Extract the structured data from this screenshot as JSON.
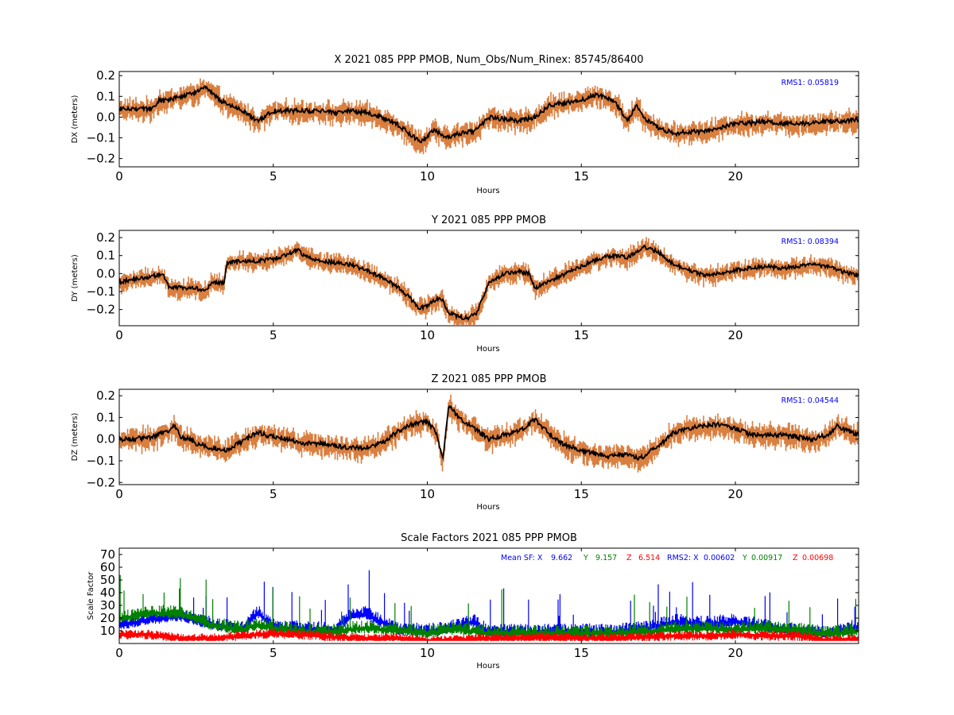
{
  "chart_data": [
    {
      "type": "line",
      "title": "X 2021 085 PPP  PMOB, Num_Obs/Num_Rinex: 85745/86400",
      "xlabel": "Hours",
      "ylabel": "DX (meters)",
      "xlim": [
        0,
        24
      ],
      "ylim": [
        -0.24,
        0.22
      ],
      "xticks": [
        "0",
        "5",
        "10",
        "15",
        "20"
      ],
      "yticks": [
        "0.2",
        "0.1",
        "0.0",
        "−0.1",
        "−0.2"
      ],
      "annotation": "RMS1:  0.05819",
      "colors": {
        "envelope": "#d2691e",
        "trace": "#000000",
        "annotation": "#0000ff"
      },
      "series": [
        {
          "x": [
            0,
            0.5,
            1,
            1.3,
            1.5,
            2,
            2.5,
            2.8,
            3,
            3.3,
            3.5,
            4,
            4.3,
            4.5,
            5,
            5.5,
            6,
            6.5,
            7,
            7.5,
            8,
            8.5,
            9,
            9.5,
            9.8,
            10,
            10.2,
            10.4,
            10.6,
            11,
            11.5,
            12,
            12.5,
            13,
            13.5,
            14,
            14.5,
            15,
            15.3,
            15.5,
            16,
            16.2,
            16.5,
            16.8,
            17,
            17.5,
            18,
            18.5,
            19,
            19.5,
            20,
            20.5,
            21,
            21.5,
            22,
            22.5,
            23,
            23.5,
            24
          ],
          "y": [
            0.04,
            0.04,
            0.04,
            0.08,
            0.08,
            0.1,
            0.12,
            0.14,
            0.12,
            0.08,
            0.06,
            0.03,
            0.0,
            -0.02,
            0.03,
            0.03,
            0.03,
            0.03,
            0.02,
            0.03,
            0.02,
            0.0,
            -0.03,
            -0.09,
            -0.12,
            -0.1,
            -0.06,
            -0.08,
            -0.1,
            -0.08,
            -0.07,
            0.0,
            -0.01,
            -0.02,
            0.0,
            0.06,
            0.07,
            0.08,
            0.1,
            0.11,
            0.08,
            0.05,
            -0.02,
            0.06,
            0.0,
            -0.05,
            -0.08,
            -0.07,
            -0.07,
            -0.05,
            -0.03,
            -0.03,
            -0.02,
            -0.03,
            -0.03,
            -0.03,
            -0.02,
            -0.02,
            -0.01
          ]
        }
      ]
    },
    {
      "type": "line",
      "title": "Y 2021 085 PPP  PMOB",
      "xlabel": "Hours",
      "ylabel": "DY (meters)",
      "xlim": [
        0,
        24
      ],
      "ylim": [
        -0.29,
        0.24
      ],
      "xticks": [
        "0",
        "5",
        "10",
        "15",
        "20"
      ],
      "yticks": [
        "0.2",
        "0.1",
        "0.0",
        "−0.1",
        "−0.2"
      ],
      "annotation": "RMS1:  0.08394",
      "colors": {
        "envelope": "#d2691e",
        "trace": "#000000",
        "annotation": "#0000ff"
      },
      "series": [
        {
          "x": [
            0,
            0.5,
            1,
            1.4,
            1.6,
            2,
            2.5,
            2.8,
            3,
            3.4,
            3.5,
            4,
            4.5,
            5,
            5.5,
            5.8,
            6,
            6.5,
            7,
            7.5,
            8,
            8.5,
            9,
            9.4,
            9.7,
            10,
            10.3,
            10.5,
            10.7,
            11,
            11.3,
            11.6,
            12,
            12.5,
            13,
            13.3,
            13.5,
            14,
            14.5,
            15,
            15.5,
            16,
            16.5,
            16.8,
            17,
            17.5,
            18,
            18.5,
            19,
            19.5,
            20,
            20.5,
            21,
            21.5,
            22,
            22.5,
            23,
            23.5,
            24
          ],
          "y": [
            -0.05,
            -0.03,
            -0.02,
            0.0,
            -0.07,
            -0.08,
            -0.08,
            -0.1,
            -0.05,
            -0.05,
            0.06,
            0.07,
            0.07,
            0.08,
            0.11,
            0.13,
            0.1,
            0.07,
            0.06,
            0.05,
            0.02,
            -0.02,
            -0.07,
            -0.13,
            -0.19,
            -0.18,
            -0.14,
            -0.15,
            -0.22,
            -0.24,
            -0.25,
            -0.22,
            -0.05,
            0.0,
            0.01,
            0.0,
            -0.08,
            -0.04,
            0.0,
            0.04,
            0.08,
            0.1,
            0.09,
            0.12,
            0.15,
            0.12,
            0.05,
            0.02,
            -0.01,
            0.0,
            0.02,
            0.03,
            0.04,
            0.03,
            0.04,
            0.05,
            0.04,
            0.01,
            -0.01
          ]
        }
      ]
    },
    {
      "type": "line",
      "title": "Z 2021 085 PPP  PMOB",
      "xlabel": "Hours",
      "ylabel": "DZ (meters)",
      "xlim": [
        0,
        24
      ],
      "ylim": [
        -0.21,
        0.23
      ],
      "xticks": [
        "0",
        "5",
        "10",
        "15",
        "20"
      ],
      "yticks": [
        "0.2",
        "0.1",
        "0.0",
        "−0.1",
        "−0.2"
      ],
      "annotation": "RMS1:  0.04544",
      "colors": {
        "envelope": "#d2691e",
        "trace": "#000000",
        "annotation": "#0000ff"
      },
      "series": [
        {
          "x": [
            0,
            0.5,
            1,
            1.5,
            1.8,
            2,
            2.3,
            2.5,
            3,
            3.5,
            4,
            4.5,
            5,
            5.5,
            6,
            6.5,
            7,
            7.5,
            8,
            8.5,
            9,
            9.5,
            10,
            10.3,
            10.5,
            10.7,
            11,
            11.5,
            12,
            12.5,
            13,
            13.5,
            14,
            14.5,
            15,
            15.5,
            16,
            16.5,
            16.9,
            17.2,
            17.5,
            18,
            18.5,
            19,
            19.5,
            20,
            20.5,
            21,
            21.5,
            22,
            22.5,
            23,
            23.3,
            23.6,
            24
          ],
          "y": [
            0.0,
            0.0,
            0.01,
            0.03,
            0.06,
            0.01,
            0.0,
            -0.02,
            -0.04,
            -0.05,
            -0.01,
            0.03,
            0.01,
            0.0,
            -0.02,
            -0.02,
            -0.03,
            -0.04,
            -0.04,
            -0.02,
            0.03,
            0.07,
            0.08,
            0.03,
            -0.1,
            0.16,
            0.1,
            0.05,
            0.0,
            0.02,
            0.04,
            0.09,
            0.02,
            -0.03,
            -0.05,
            -0.07,
            -0.08,
            -0.07,
            -0.09,
            -0.06,
            -0.03,
            0.03,
            0.05,
            0.06,
            0.07,
            0.05,
            0.02,
            0.02,
            0.02,
            0.01,
            0.0,
            0.02,
            0.06,
            0.04,
            0.02
          ]
        }
      ]
    },
    {
      "type": "line",
      "title": "Scale Factors 2021 085 PPP  PMOB",
      "xlabel": "Hours",
      "ylabel": "Scale Factor",
      "xlim": [
        0,
        24
      ],
      "ylim": [
        0,
        75
      ],
      "xticks": [
        "0",
        "5",
        "10",
        "15",
        "20"
      ],
      "yticks": [
        "70",
        "60",
        "50",
        "40",
        "30",
        "20",
        "10"
      ],
      "stats": {
        "mean_sf_label": "Mean SF: X",
        "mean_sf_x": "9.662",
        "mean_sf_y_label": "Y",
        "mean_sf_y": "9.157",
        "mean_sf_z_label": "Z",
        "mean_sf_z": "6.514",
        "rms2_label": "RMS2: X",
        "rms2_x": "0.00602",
        "rms2_y_label": "Y",
        "rms2_y": "0.00917",
        "rms2_z_label": "Z",
        "rms2_z": "0.00698"
      },
      "colors": {
        "X": "#0000ff",
        "Y": "#008000",
        "Z": "#ff0000"
      },
      "series": [
        {
          "name": "X",
          "x": [
            0,
            1,
            2,
            3,
            4,
            4.5,
            5,
            6,
            7,
            7.5,
            8,
            9,
            10,
            11,
            11.5,
            12,
            13,
            14,
            15,
            16,
            17,
            18,
            19,
            20,
            21,
            22,
            23,
            24
          ],
          "y": [
            15,
            20,
            22,
            16,
            12,
            25,
            14,
            12,
            12,
            22,
            24,
            12,
            10,
            14,
            18,
            10,
            10,
            10,
            10,
            10,
            12,
            18,
            16,
            18,
            14,
            10,
            8,
            14
          ]
        },
        {
          "name": "Y",
          "x": [
            0,
            1,
            2,
            2.5,
            3,
            4,
            4.5,
            5,
            6,
            7,
            7.5,
            8,
            9,
            10,
            11,
            12,
            13,
            14,
            15,
            16,
            17,
            18,
            19,
            20,
            21,
            22,
            23,
            24
          ],
          "y": [
            20,
            25,
            24,
            20,
            15,
            12,
            16,
            13,
            10,
            10,
            12,
            13,
            11,
            9,
            12,
            9,
            9,
            9,
            9,
            9,
            10,
            12,
            13,
            12,
            13,
            11,
            8,
            11
          ]
        },
        {
          "name": "Z",
          "x": [
            0,
            1,
            2,
            3,
            4,
            5,
            6,
            7,
            8,
            9,
            10,
            11,
            12,
            13,
            14,
            15,
            16,
            17,
            18,
            19,
            20,
            21,
            22,
            23,
            24
          ],
          "y": [
            8,
            8,
            5,
            5,
            7,
            9,
            8,
            6,
            5,
            5,
            3,
            4,
            5,
            5,
            6,
            5,
            5,
            6,
            7,
            7,
            8,
            7,
            7,
            3,
            5
          ]
        }
      ]
    }
  ]
}
